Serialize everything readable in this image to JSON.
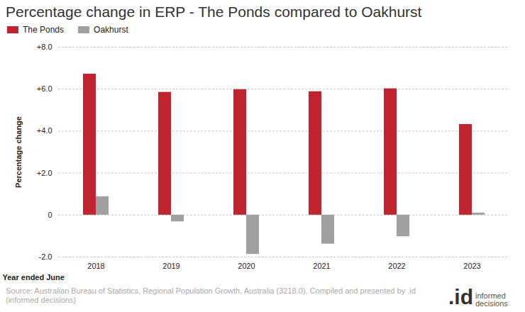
{
  "chart_data": {
    "type": "bar",
    "title": "Percentage change in ERP - The Ponds compared to Oakhurst",
    "categories": [
      "2018",
      "2019",
      "2020",
      "2021",
      "2022",
      "2023"
    ],
    "series": [
      {
        "name": "The Ponds",
        "color": "#c1232f",
        "values": [
          6.72,
          5.85,
          5.98,
          5.88,
          6.02,
          4.32
        ]
      },
      {
        "name": "Oakhurst",
        "color": "#a0a0a0",
        "values": [
          0.88,
          -0.32,
          -1.87,
          -1.38,
          -1.03,
          0.1
        ]
      }
    ],
    "x_label": "Year ended June",
    "y_label": "Percentage change",
    "ylim": [
      -2,
      8
    ],
    "yticks": [
      {
        "value": -2,
        "label": "-2.0"
      },
      0,
      {
        "value": 2,
        "label": "+2.0"
      },
      {
        "value": 4,
        "label": "+4.0"
      },
      {
        "value": 6,
        "label": "+6.0"
      },
      {
        "value": 8,
        "label": "+8.0"
      }
    ],
    "grid": true,
    "legend": "top-left",
    "source": "Source: Australian Bureau of Statistics, Regional Population Growth, Australia (3218.0). Compiled and presented by .id (informed decisions)",
    "logo": [
      ".id",
      "informed decisions"
    ]
  }
}
